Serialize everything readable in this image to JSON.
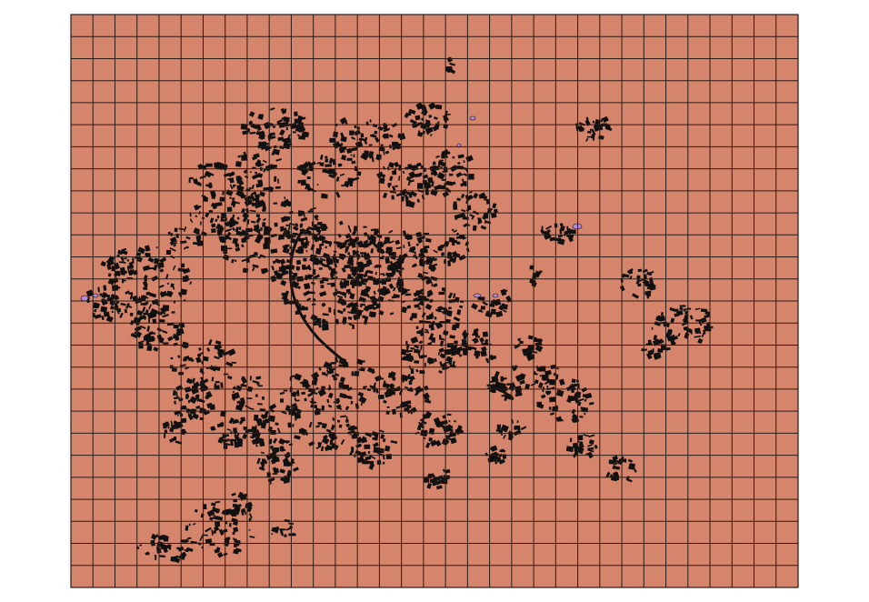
{
  "map": {
    "grid": {
      "columns": 33,
      "rows": 26
    },
    "colors": {
      "page_background": "#ffffff",
      "cell_fill": "#d4856c",
      "grid_line": "#2b1a15",
      "buildings": "#111111",
      "water_patches": "#b38ad6"
    },
    "layers": [
      "grid-cells",
      "building-footprints",
      "water-patches"
    ]
  }
}
